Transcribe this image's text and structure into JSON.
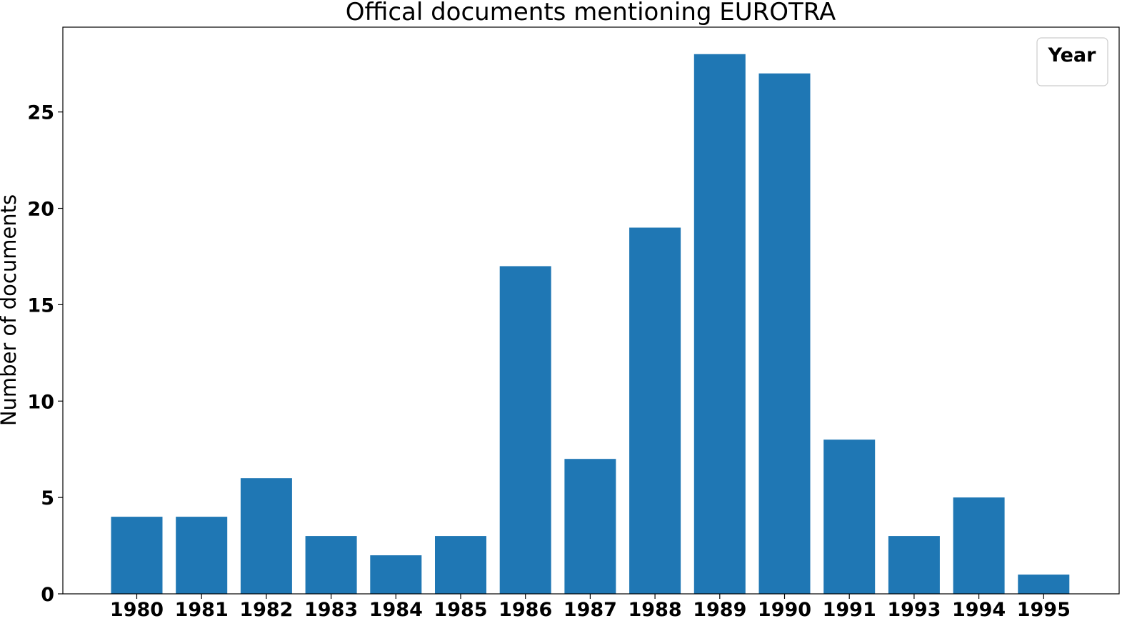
{
  "chart_data": {
    "type": "bar",
    "title": "Offical documents mentioning EUROTRA",
    "xlabel": "",
    "ylabel": "Number of documents",
    "legend_title": "Year",
    "legend_placement": "top-right",
    "grid": false,
    "bar_color": "#1f77b4",
    "categories": [
      "1980",
      "1981",
      "1982",
      "1983",
      "1984",
      "1985",
      "1986",
      "1987",
      "1988",
      "1989",
      "1990",
      "1991",
      "1993",
      "1994",
      "1995"
    ],
    "values": [
      4,
      4,
      6,
      3,
      2,
      3,
      17,
      7,
      19,
      28,
      27,
      8,
      3,
      5,
      1
    ],
    "yticks": [
      0,
      5,
      10,
      15,
      20,
      25
    ],
    "ylim": [
      0,
      29.4
    ]
  }
}
